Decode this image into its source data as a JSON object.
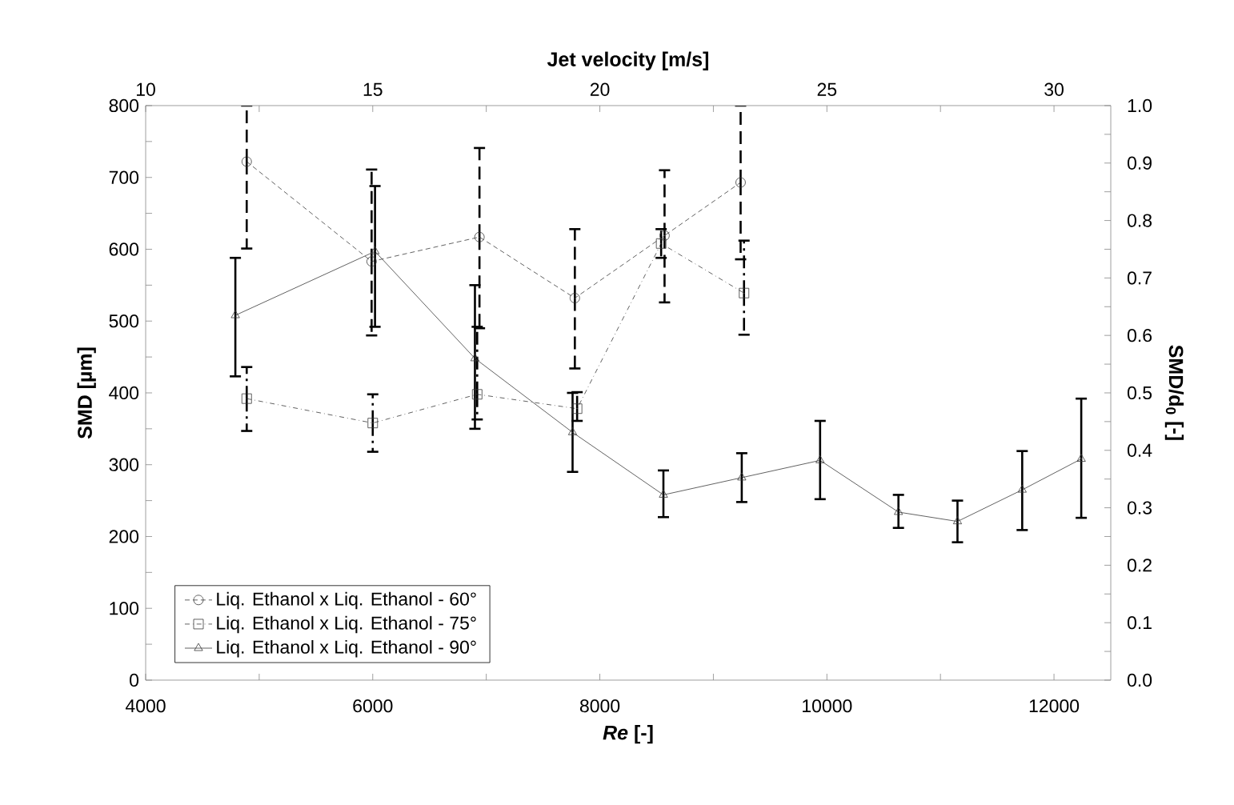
{
  "chart_data": {
    "type": "line",
    "xlabel": "*Re* [-]",
    "ylabel": "SMD [µm]",
    "y2label": "SMD/d$_{0}$ [-]",
    "x2label": "Jet velocity [m/s]",
    "xlim": [
      4000,
      12500
    ],
    "ylim": [
      0,
      800
    ],
    "y2lim": [
      0,
      1
    ],
    "x2lim": [
      10,
      31.25
    ],
    "xticks": [
      4000,
      {
        "value": 5000,
        "label": null
      },
      6000,
      {
        "value": 7000,
        "label": null
      },
      8000,
      {
        "value": 9000,
        "label": null
      },
      10000,
      {
        "value": 11000,
        "label": null
      },
      12000
    ],
    "yticks": [
      0,
      {
        "value": 50,
        "label": null
      },
      100,
      {
        "value": 150,
        "label": null
      },
      200,
      {
        "value": 250,
        "label": null
      },
      300,
      {
        "value": 350,
        "label": null
      },
      400,
      {
        "value": 450,
        "label": null
      },
      500,
      {
        "value": 550,
        "label": null
      },
      600,
      {
        "value": 650,
        "label": null
      },
      700,
      {
        "value": 750,
        "label": null
      },
      800
    ],
    "y2ticks": [
      {
        "value": 0,
        "label": "0.0"
      },
      {
        "value": 0.05,
        "label": null
      },
      0.1,
      {
        "value": 0.15,
        "label": null
      },
      0.2,
      {
        "value": 0.25,
        "label": null
      },
      0.3,
      {
        "value": 0.35,
        "label": null
      },
      0.4,
      {
        "value": 0.45,
        "label": null
      },
      0.5,
      {
        "value": 0.55,
        "label": null
      },
      0.6,
      {
        "value": 0.65,
        "label": null
      },
      0.7,
      {
        "value": 0.75,
        "label": null
      },
      0.8,
      {
        "value": 0.85,
        "label": null
      },
      0.9,
      {
        "value": 0.95,
        "label": null
      },
      {
        "value": 1,
        "label": "1.0"
      }
    ],
    "x2ticks": [
      10,
      {
        "value": 12.5,
        "label": null
      },
      15,
      {
        "value": 17.5,
        "label": null
      },
      20,
      {
        "value": 22.5,
        "label": null
      },
      25,
      {
        "value": 27.5,
        "label": null
      },
      30
    ],
    "grid": false,
    "legend": "bottom left",
    "series": [
      {
        "name": "Liq. Ethanol x Liq. Ethanol - 60°",
        "color": "#3a3a3a",
        "marker": "circle",
        "line_style": "dotted",
        "x": [
          4890,
          5990,
          6940,
          7780,
          8570,
          9240
        ],
        "values": [
          722,
          583,
          617,
          532,
          619,
          693
        ],
        "errors": [
          [
            601,
            800
          ],
          [
            480,
            711
          ],
          [
            490,
            741
          ],
          [
            434,
            628
          ],
          [
            526,
            710
          ],
          [
            586,
            800
          ]
        ]
      },
      {
        "name": "Liq. Ethanol x Liq. Ethanol - 75°",
        "color": "#3a3a3a",
        "marker": "square",
        "line_style": "dashed",
        "x": [
          4890,
          6000,
          6920,
          7800,
          8540,
          9270
        ],
        "values": [
          392,
          358,
          398,
          378,
          608,
          539
        ],
        "errors": [
          [
            347,
            436
          ],
          [
            318,
            398
          ],
          [
            363,
            492
          ],
          [
            361,
            401
          ],
          [
            588,
            628
          ],
          [
            481,
            612
          ]
        ]
      },
      {
        "name": "Liq. Ethanol x Liq. Ethanol - 90°",
        "color": "#3a3a3a",
        "marker": "triangle",
        "line_style": "solid",
        "x": [
          4790,
          6020,
          6900,
          7760,
          8560,
          9250,
          9940,
          10630,
          11150,
          11720,
          12240
        ],
        "values": [
          508,
          597,
          448,
          345,
          258,
          282,
          306,
          234,
          221,
          265,
          308
        ],
        "errors": [
          [
            423,
            588
          ],
          [
            492,
            688
          ],
          [
            350,
            550
          ],
          [
            290,
            400
          ],
          [
            227,
            292
          ],
          [
            248,
            316
          ],
          [
            252,
            361
          ],
          [
            212,
            258
          ],
          [
            192,
            250
          ],
          [
            209,
            319
          ],
          [
            226,
            392
          ]
        ]
      }
    ]
  }
}
